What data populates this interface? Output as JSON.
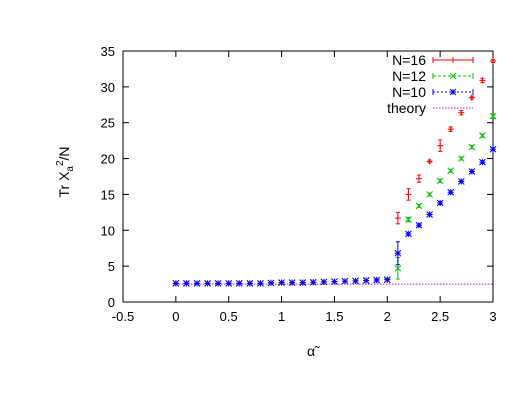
{
  "chart_data": {
    "type": "scatter",
    "title": "",
    "xlabel": "α̃",
    "ylabel": "Tr X_a^2/N",
    "xlim": [
      -0.5,
      3
    ],
    "ylim": [
      0,
      35
    ],
    "xticks": [
      "-0.5",
      "0",
      "0.5",
      "1",
      "1.5",
      "2",
      "2.5",
      "3"
    ],
    "yticks": [
      "0",
      "5",
      "10",
      "15",
      "20",
      "25",
      "30",
      "35"
    ],
    "grid": false,
    "legend_position": "top-right",
    "series": [
      {
        "name": "N=16",
        "marker": "plus",
        "color": "#ff0000",
        "x": [
          0,
          0.1,
          0.2,
          0.3,
          0.4,
          0.5,
          0.6,
          0.7,
          0.8,
          0.9,
          1.0,
          1.1,
          1.2,
          1.3,
          1.4,
          1.5,
          1.6,
          1.7,
          1.8,
          1.9,
          2.0,
          2.1,
          2.2,
          2.3,
          2.4,
          2.5,
          2.6,
          2.7,
          2.8,
          2.9,
          3.0
        ],
        "y": [
          2.6,
          2.6,
          2.6,
          2.6,
          2.6,
          2.6,
          2.6,
          2.6,
          2.6,
          2.7,
          2.7,
          2.7,
          2.7,
          2.75,
          2.8,
          2.85,
          2.9,
          2.95,
          3.0,
          3.1,
          3.2,
          11.7,
          15.0,
          17.2,
          19.6,
          21.8,
          24.1,
          26.4,
          28.5,
          30.9,
          33.6
        ],
        "err": [
          0,
          0,
          0,
          0,
          0,
          0,
          0,
          0,
          0,
          0,
          0,
          0,
          0,
          0,
          0,
          0,
          0,
          0,
          0,
          0,
          0,
          0.8,
          0.8,
          0.5,
          0.2,
          0.8,
          0.3,
          0.3,
          0.2,
          0.3,
          0.2
        ]
      },
      {
        "name": "N=12",
        "marker": "cross",
        "color": "#00c000",
        "x": [
          0,
          0.1,
          0.2,
          0.3,
          0.4,
          0.5,
          0.6,
          0.7,
          0.8,
          0.9,
          1.0,
          1.1,
          1.2,
          1.3,
          1.4,
          1.5,
          1.6,
          1.7,
          1.8,
          1.9,
          2.0,
          2.1,
          2.2,
          2.3,
          2.4,
          2.5,
          2.6,
          2.7,
          2.8,
          2.9,
          3.0
        ],
        "y": [
          2.6,
          2.6,
          2.6,
          2.6,
          2.6,
          2.6,
          2.6,
          2.6,
          2.6,
          2.65,
          2.7,
          2.7,
          2.7,
          2.75,
          2.8,
          2.85,
          2.9,
          2.95,
          3.0,
          3.05,
          3.1,
          4.7,
          11.5,
          13.4,
          15.0,
          16.9,
          18.3,
          20.0,
          21.6,
          23.2,
          25.9
        ],
        "err": [
          0,
          0,
          0,
          0,
          0,
          0,
          0,
          0,
          0,
          0,
          0,
          0,
          0,
          0,
          0,
          0,
          0,
          0,
          0,
          0,
          0,
          1.5,
          0.3,
          0.2,
          0.2,
          0.2,
          0.2,
          0.2,
          0.2,
          0.2,
          0.3
        ]
      },
      {
        "name": "N=10",
        "marker": "star",
        "color": "#0000ff",
        "x": [
          0,
          0.1,
          0.2,
          0.3,
          0.4,
          0.5,
          0.6,
          0.7,
          0.8,
          0.9,
          1.0,
          1.1,
          1.2,
          1.3,
          1.4,
          1.5,
          1.6,
          1.7,
          1.8,
          1.9,
          2.0,
          2.1,
          2.2,
          2.3,
          2.4,
          2.5,
          2.6,
          2.7,
          2.8,
          2.9,
          3.0
        ],
        "y": [
          2.6,
          2.6,
          2.6,
          2.6,
          2.6,
          2.6,
          2.6,
          2.6,
          2.6,
          2.65,
          2.7,
          2.7,
          2.7,
          2.75,
          2.8,
          2.85,
          2.9,
          2.95,
          3.0,
          3.05,
          3.1,
          6.8,
          9.5,
          10.7,
          12.2,
          13.8,
          15.3,
          16.8,
          18.2,
          19.5,
          21.3
        ],
        "err": [
          0,
          0,
          0,
          0,
          0,
          0,
          0,
          0,
          0,
          0,
          0,
          0,
          0,
          0,
          0,
          0,
          0,
          0,
          0,
          0,
          0,
          1.6,
          0.2,
          0.2,
          0.2,
          0.2,
          0.2,
          0.2,
          0.2,
          0.2,
          0.2
        ]
      }
    ],
    "theory_line": {
      "name": "theory",
      "color": "#e000e0",
      "x": [
        0,
        3
      ],
      "y": [
        2.5,
        2.5
      ]
    }
  }
}
